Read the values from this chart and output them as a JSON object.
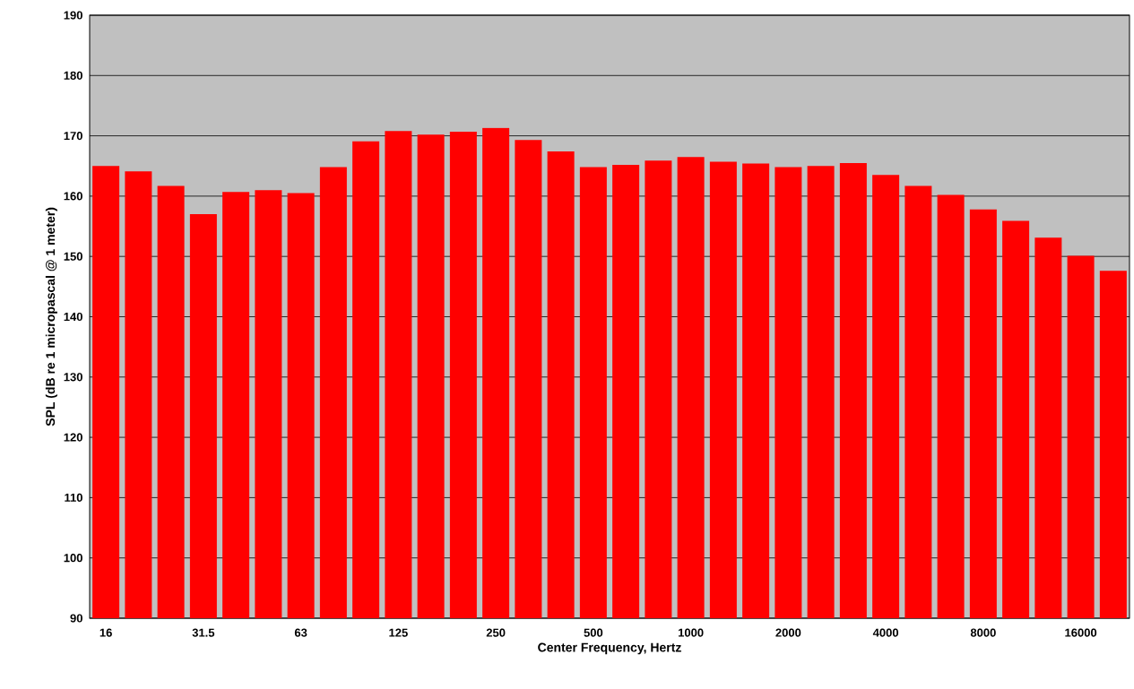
{
  "chart_data": {
    "type": "bar",
    "xlabel": "Center Frequency, Hertz",
    "ylabel": "SPL (dB re 1 micropascal @ 1 meter)",
    "categories": [
      "16",
      null,
      null,
      "31.5",
      null,
      null,
      "63",
      null,
      null,
      "125",
      null,
      null,
      "250",
      null,
      null,
      "500",
      null,
      null,
      "1000",
      null,
      null,
      "2000",
      null,
      null,
      "4000",
      null,
      null,
      "8000",
      null,
      null,
      "16000",
      null
    ],
    "values": [
      165.0,
      164.1,
      161.7,
      157.0,
      160.7,
      161.0,
      160.5,
      164.8,
      169.1,
      170.8,
      170.2,
      170.7,
      171.3,
      169.3,
      167.4,
      164.8,
      165.2,
      165.9,
      166.5,
      165.7,
      165.4,
      164.8,
      165.0,
      165.5,
      163.5,
      161.7,
      160.2,
      157.8,
      155.9,
      153.1,
      150.1,
      147.6
    ],
    "color": "#ff0000",
    "ylim": [
      90,
      190
    ],
    "yticks": [
      90,
      100,
      110,
      120,
      130,
      140,
      150,
      160,
      170,
      180,
      190
    ],
    "grid": "y"
  }
}
